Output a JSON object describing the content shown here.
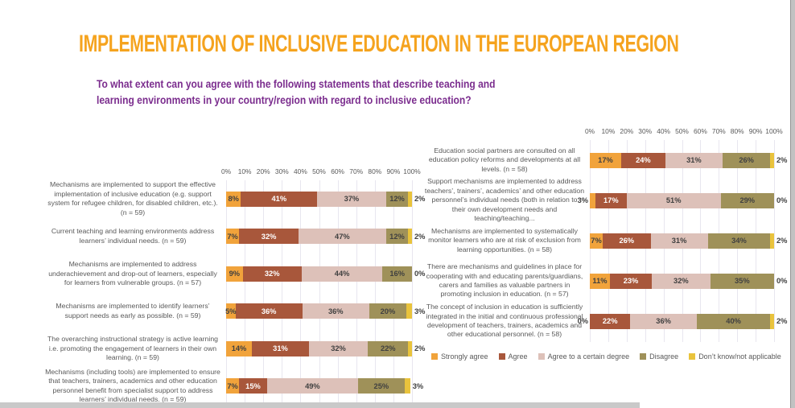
{
  "title": "IMPLEMENTATION OF INCLUSIVE EDUCATION IN THE EUROPEAN REGION",
  "subtitle": {
    "line1": "To what extent can you agree with the following statements that describe teaching and",
    "line2": "learning environments in your country/region with regard to inclusive education?"
  },
  "colors": {
    "title": "#F5A31E",
    "subtitle": "#7B2D8E",
    "series": [
      "#F1A33B",
      "#A8573B",
      "#DDC1B9",
      "#9F9159",
      "#E9C33C"
    ],
    "label_text": "#595959",
    "data_label": "#404040",
    "gridline": "#E8E6EF"
  },
  "axis_ticks": [
    "0%",
    "10%",
    "20%",
    "30%",
    "40%",
    "50%",
    "60%",
    "70%",
    "80%",
    "90%",
    "100%"
  ],
  "legend": [
    "Strongly agree",
    "Agree",
    "Agree  to a certain degree",
    "Disagree",
    "Don’t know/not applicable"
  ],
  "chart_data": [
    {
      "type": "bar",
      "orientation": "horizontal-stacked",
      "title": "",
      "xlabel": "",
      "ylabel": "",
      "xlim": [
        0,
        100
      ],
      "grid": true,
      "legend_position": "bottom-right-shared",
      "series_names": [
        "Strongly agree",
        "Agree",
        "Agree  to a certain degree",
        "Disagree",
        "Don’t know/not applicable"
      ],
      "categories": [
        "Mechanisms are implemented to support the effective implementation of inclusive education (e.g. support system for refugee children, for disabled children, etc.). (n = 59)",
        "Current teaching and learning environments address learners’ individual needs. (n = 59)",
        "Mechanisms are implemented to address underachievement and drop-out of learners, especially for learners from vulnerable groups. (n = 57)",
        "Mechanisms are implemented to identify learners’ support needs as early as possible. (n = 59)",
        "The overarching instructional strategy is active learning i.e. promoting the engagement of learners in their own learning. (n = 59)",
        "Mechanisms (including tools) are implemented to ensure that teachers, trainers, academics and other education personnel benefit from specialist support to address learners’ individual needs. (n = 59)"
      ],
      "rows": [
        [
          8,
          41,
          37,
          12,
          2
        ],
        [
          7,
          32,
          47,
          12,
          2
        ],
        [
          9,
          32,
          44,
          16,
          0
        ],
        [
          5,
          36,
          36,
          20,
          3
        ],
        [
          14,
          31,
          32,
          22,
          2
        ],
        [
          7,
          15,
          49,
          25,
          3
        ]
      ]
    },
    {
      "type": "bar",
      "orientation": "horizontal-stacked",
      "title": "",
      "xlabel": "",
      "ylabel": "",
      "xlim": [
        0,
        100
      ],
      "grid": true,
      "legend_position": "bottom-right-shared",
      "series_names": [
        "Strongly agree",
        "Agree",
        "Agree  to a certain degree",
        "Disagree",
        "Don’t know/not applicable"
      ],
      "categories": [
        "Education social partners are consulted on all education policy reforms and developments at all levels. (n = 58)",
        "Support mechanisms are implemented to address teachers’, trainers’, academics’ and other education personnel’s individual needs (both in relation to their own development needs and teaching/teaching...",
        "Mechanisms are implemented to systematically monitor learners who are at risk of exclusion from learning opportunities. (n = 58)",
        "There are mechanisms and guidelines in place for cooperating with and educating parents/guardians, carers and families as valuable partners in promoting inclusion in education. (n = 57)",
        "The concept of inclusion in education is sufficiently integrated in the initial and continuous professional development of teachers, trainers, academics and other educational personnel.  (n = 58)"
      ],
      "rows": [
        [
          17,
          24,
          31,
          26,
          2
        ],
        [
          3,
          17,
          51,
          29,
          0
        ],
        [
          7,
          26,
          31,
          34,
          2
        ],
        [
          11,
          23,
          32,
          35,
          0
        ],
        [
          0,
          22,
          36,
          40,
          2
        ]
      ]
    }
  ]
}
